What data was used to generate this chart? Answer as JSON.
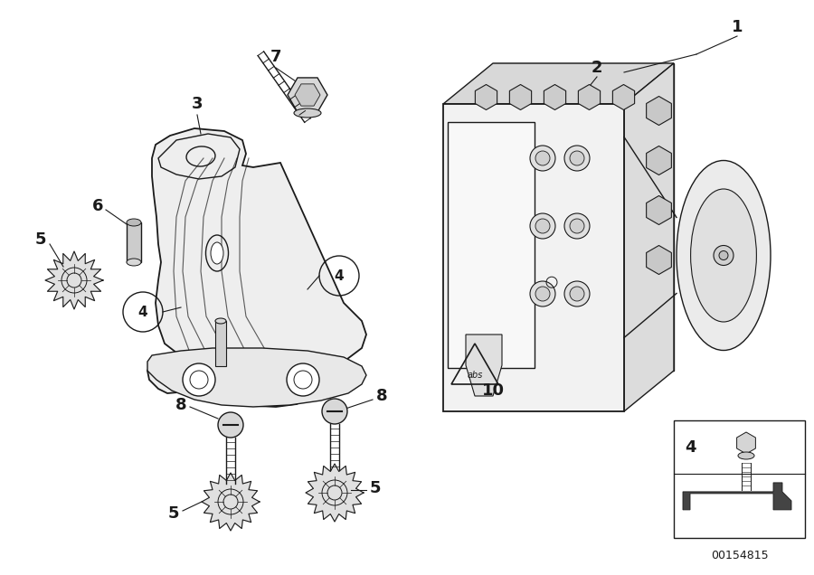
{
  "bg_color": "#ffffff",
  "line_color": "#1a1a1a",
  "part_id": "00154815",
  "figsize": [
    9.0,
    6.36
  ],
  "dpi": 100,
  "bracket_color": "#f5f5f5",
  "shadow_color": "#e0e0e0",
  "dark_color": "#333333",
  "mid_color": "#aaaaaa",
  "light_color": "#eeeeee"
}
